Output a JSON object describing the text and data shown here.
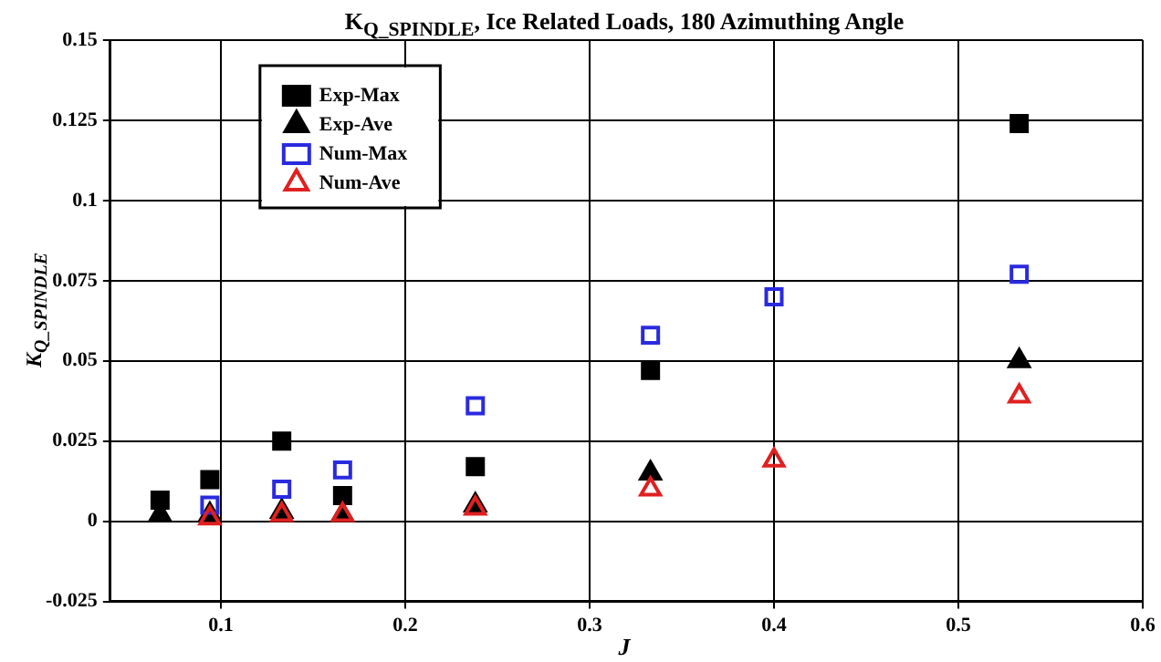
{
  "chart_data": {
    "type": "scatter",
    "title": "K$_{Q_SPINDLE}$, Ice Related Loads, 180 Azimuthing Angle",
    "xlabel": "J",
    "ylabel": "K$_{Q_SPINDLE}$",
    "xlim": [
      0.04,
      0.6
    ],
    "xticks": [
      0.1,
      0.2,
      0.3,
      0.4,
      0.5,
      0.6
    ],
    "ylim": [
      -0.025,
      0.15
    ],
    "yticks": [
      -0.025,
      0,
      0.025,
      0.05,
      0.075,
      0.1,
      0.125,
      0.15
    ],
    "grid": true,
    "legend": "top left",
    "series": [
      {
        "name": "Exp-Max",
        "color": "#000000",
        "marker": "square",
        "x": [
          0.067,
          0.094,
          0.133,
          0.166,
          0.238,
          0.333,
          0.533
        ],
        "values": [
          0.0066,
          0.013,
          0.025,
          0.008,
          0.017,
          0.047,
          0.124
        ]
      },
      {
        "name": "Exp-Ave",
        "color": "#000000",
        "marker": "triangle",
        "x": [
          0.067,
          0.094,
          0.133,
          0.166,
          0.238,
          0.333,
          0.533
        ],
        "values": [
          0.002,
          0.002,
          0.003,
          0.002,
          0.005,
          0.015,
          0.05
        ]
      },
      {
        "name": "Num-Max",
        "color": "#2a2ae0",
        "marker": "square",
        "x": [
          0.094,
          0.133,
          0.166,
          0.238,
          0.333,
          0.4,
          0.533
        ],
        "values": [
          0.005,
          0.01,
          0.016,
          0.036,
          0.058,
          0.07,
          0.077
        ]
      },
      {
        "name": "Num-Ave",
        "color": "#e02020",
        "marker": "triangle",
        "x": [
          0.094,
          0.133,
          0.166,
          0.238,
          0.333,
          0.4,
          0.533
        ],
        "values": [
          0.001,
          0.002,
          0.002,
          0.004,
          0.01,
          0.019,
          0.039
        ]
      }
    ]
  }
}
